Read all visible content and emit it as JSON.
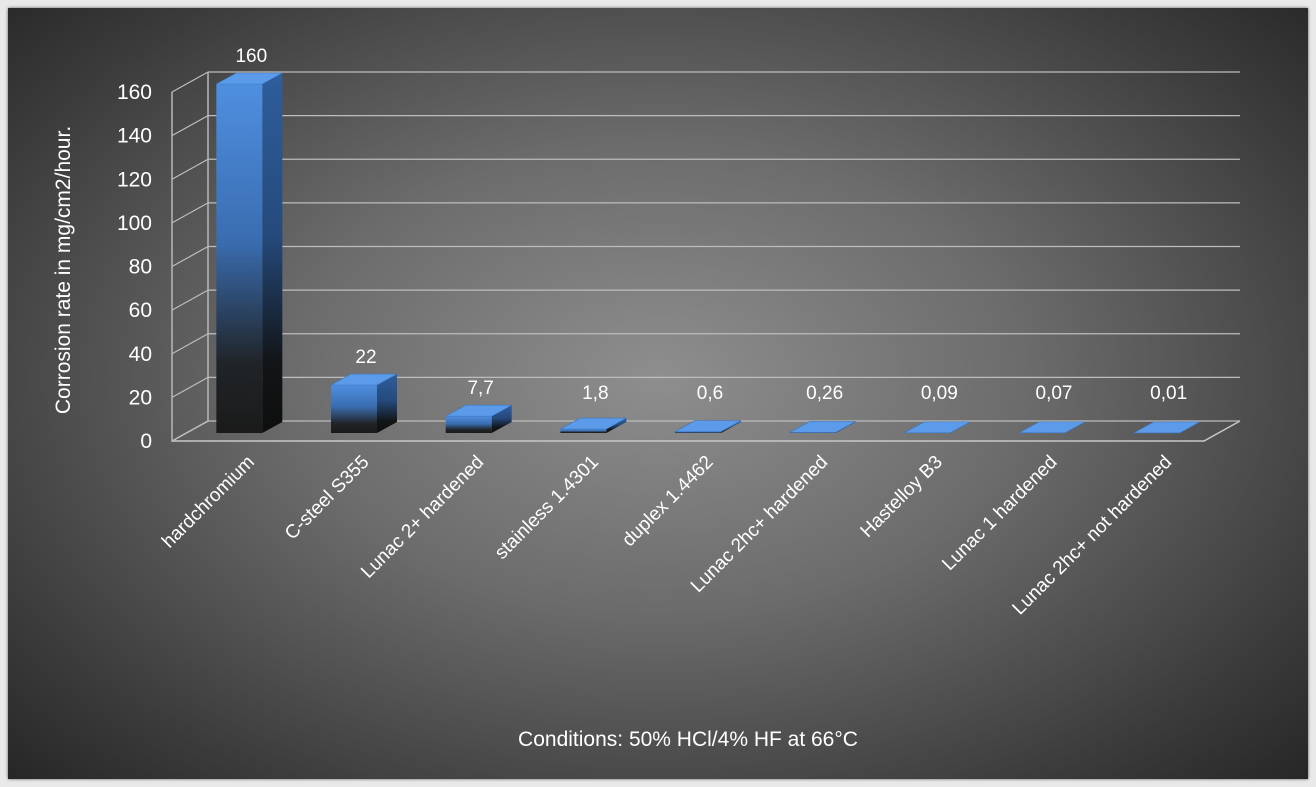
{
  "chart_data": {
    "type": "bar",
    "title": "",
    "ylabel": "Corrosion rate in mg/cm2/hour.",
    "xlabel": "",
    "footnote": "Conditions: 50% HCl/4% HF at 66°C",
    "ylim": [
      0,
      160
    ],
    "yticks": [
      "0",
      "20",
      "40",
      "60",
      "80",
      "100",
      "120",
      "140",
      "160"
    ],
    "grid": true,
    "categories": [
      "hardchromium",
      "C-steel S355",
      "Lunac 2+ hardened",
      "stainless 1.4301",
      "duplex 1.4462",
      "Lunac 2hc+ hardened",
      "Hastelloy B3",
      "Lunac 1 hardened",
      "Lunac 2hc+ not hardened"
    ],
    "values": [
      160,
      22,
      7.7,
      1.8,
      0.6,
      0.26,
      0.09,
      0.07,
      0.01
    ],
    "data_labels": [
      "160",
      "22",
      "7,7",
      "1,8",
      "0,6",
      "0,26",
      "0,09",
      "0,07",
      "0,01"
    ],
    "colors": {
      "bar_top": "#4f8fe0",
      "bar_bottom": "#1c1c1c",
      "gridline": "#bdbdbd",
      "text": "#ffffff"
    }
  }
}
